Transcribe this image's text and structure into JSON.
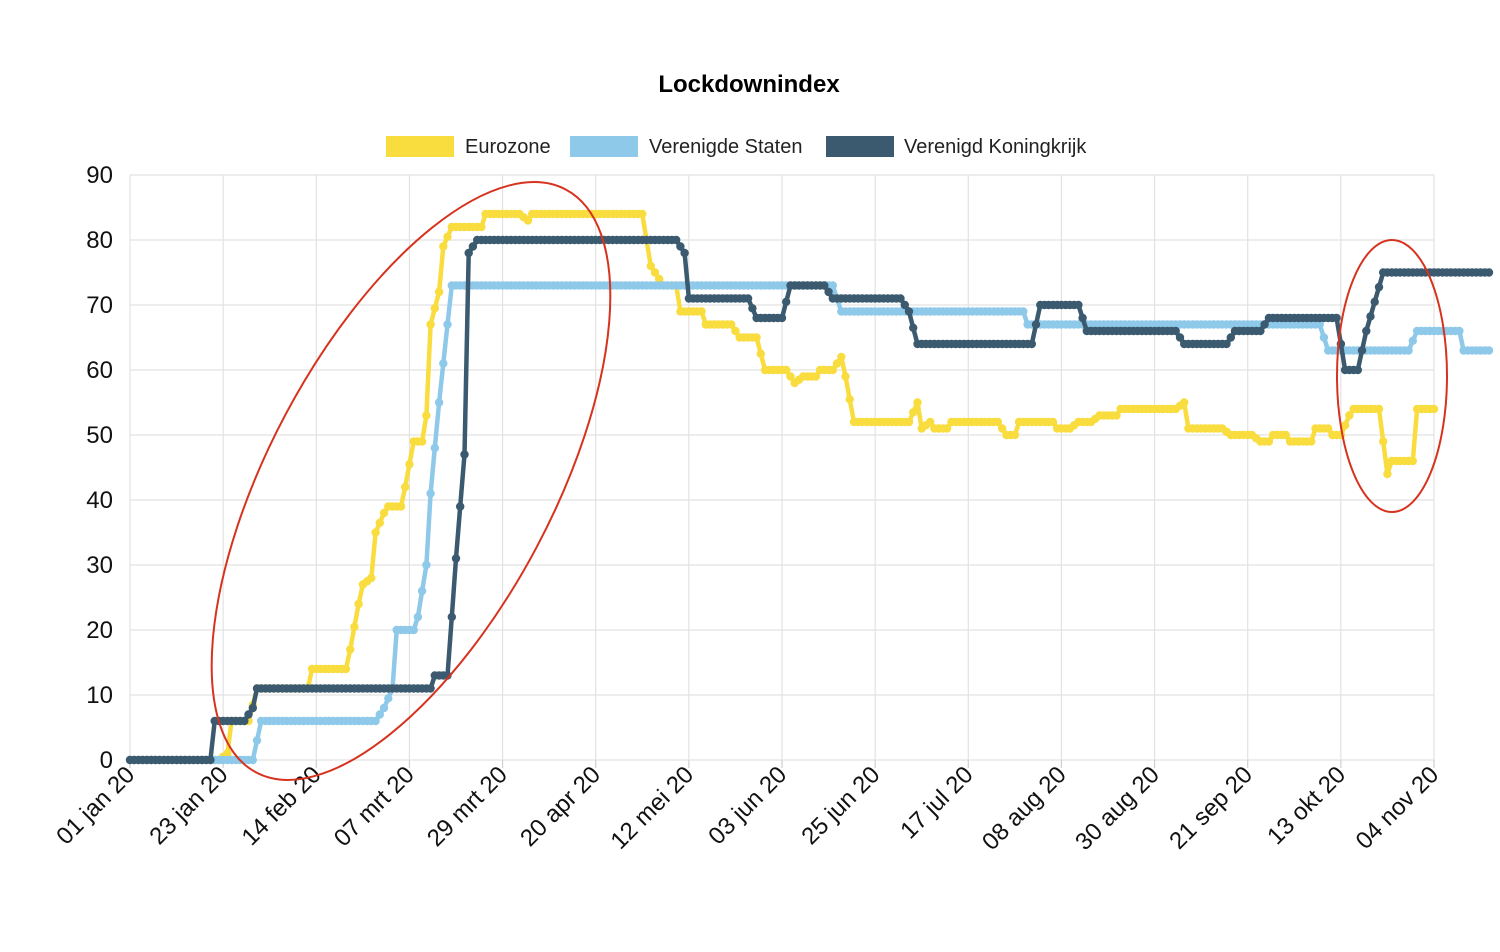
{
  "chart_data": {
    "type": "line",
    "title": "Lockdownindex",
    "xlabel": "",
    "ylabel": "",
    "ylim": [
      0,
      90
    ],
    "yticks": [
      0,
      10,
      20,
      30,
      40,
      50,
      60,
      70,
      80,
      90
    ],
    "xlim": [
      "2020-01-01",
      "2020-11-04"
    ],
    "x_tick_labels": [
      "01 jan 20",
      "23 jan 20",
      "14 feb 20",
      "07 mrt 20",
      "29 mrt 20",
      "20 apr 20",
      "12 mei 20",
      "03 jun 20",
      "25 jun 20",
      "17 jul 20",
      "08 aug 20",
      "30 aug 20",
      "21 sep 20",
      "13 okt 20",
      "04 nov 20"
    ],
    "x_tick_dates": [
      "2020-01-01",
      "2020-01-23",
      "2020-02-14",
      "2020-03-07",
      "2020-03-29",
      "2020-04-20",
      "2020-05-12",
      "2020-06-03",
      "2020-06-25",
      "2020-07-17",
      "2020-08-08",
      "2020-08-30",
      "2020-09-21",
      "2020-10-13",
      "2020-11-04"
    ],
    "grid": true,
    "legend_position": "top-center",
    "annotations": [
      "red ellipse around the rise in February–March",
      "red ellipse around the last weeks of October–November"
    ],
    "series": [
      {
        "name": "Eurozone",
        "color": "#f9dc3e",
        "points": [
          [
            "2020-01-01",
            0
          ],
          [
            "2020-01-22",
            0
          ],
          [
            "2020-01-24",
            1
          ],
          [
            "2020-01-25",
            6
          ],
          [
            "2020-01-29",
            6
          ],
          [
            "2020-01-31",
            11
          ],
          [
            "2020-02-12",
            11
          ],
          [
            "2020-02-13",
            14
          ],
          [
            "2020-02-21",
            14
          ],
          [
            "2020-02-22",
            17
          ],
          [
            "2020-02-24",
            24
          ],
          [
            "2020-02-25",
            27
          ],
          [
            "2020-02-27",
            28
          ],
          [
            "2020-02-28",
            35
          ],
          [
            "2020-03-01",
            38
          ],
          [
            "2020-03-02",
            39
          ],
          [
            "2020-03-05",
            39
          ],
          [
            "2020-03-06",
            42
          ],
          [
            "2020-03-08",
            49
          ],
          [
            "2020-03-10",
            49
          ],
          [
            "2020-03-11",
            53
          ],
          [
            "2020-03-12",
            67
          ],
          [
            "2020-03-14",
            72
          ],
          [
            "2020-03-15",
            79
          ],
          [
            "2020-03-17",
            82
          ],
          [
            "2020-03-24",
            82
          ],
          [
            "2020-03-25",
            84
          ],
          [
            "2020-04-02",
            84
          ],
          [
            "2020-04-04",
            83
          ],
          [
            "2020-04-05",
            84
          ],
          [
            "2020-05-01",
            84
          ],
          [
            "2020-05-03",
            76
          ],
          [
            "2020-05-05",
            74
          ],
          [
            "2020-05-06",
            73
          ],
          [
            "2020-05-09",
            73
          ],
          [
            "2020-05-10",
            69
          ],
          [
            "2020-05-15",
            69
          ],
          [
            "2020-05-16",
            67
          ],
          [
            "2020-05-22",
            67
          ],
          [
            "2020-05-23",
            66
          ],
          [
            "2020-05-24",
            65
          ],
          [
            "2020-05-28",
            65
          ],
          [
            "2020-05-30",
            60
          ],
          [
            "2020-06-04",
            60
          ],
          [
            "2020-06-06",
            58
          ],
          [
            "2020-06-08",
            59
          ],
          [
            "2020-06-11",
            59
          ],
          [
            "2020-06-12",
            60
          ],
          [
            "2020-06-15",
            60
          ],
          [
            "2020-06-17",
            62
          ],
          [
            "2020-06-18",
            59
          ],
          [
            "2020-06-20",
            52
          ],
          [
            "2020-07-03",
            52
          ],
          [
            "2020-07-05",
            55
          ],
          [
            "2020-07-06",
            51
          ],
          [
            "2020-07-08",
            52
          ],
          [
            "2020-07-09",
            51
          ],
          [
            "2020-07-12",
            51
          ],
          [
            "2020-07-13",
            52
          ],
          [
            "2020-07-24",
            52
          ],
          [
            "2020-07-26",
            50
          ],
          [
            "2020-07-28",
            50
          ],
          [
            "2020-07-29",
            52
          ],
          [
            "2020-08-06",
            52
          ],
          [
            "2020-08-07",
            51
          ],
          [
            "2020-08-10",
            51
          ],
          [
            "2020-08-12",
            52
          ],
          [
            "2020-08-15",
            52
          ],
          [
            "2020-08-17",
            53
          ],
          [
            "2020-08-21",
            53
          ],
          [
            "2020-08-22",
            54
          ],
          [
            "2020-09-04",
            54
          ],
          [
            "2020-09-06",
            55
          ],
          [
            "2020-09-07",
            51
          ],
          [
            "2020-09-15",
            51
          ],
          [
            "2020-09-17",
            50
          ],
          [
            "2020-09-22",
            50
          ],
          [
            "2020-09-24",
            49
          ],
          [
            "2020-09-26",
            49
          ],
          [
            "2020-09-27",
            50
          ],
          [
            "2020-09-30",
            50
          ],
          [
            "2020-10-01",
            49
          ],
          [
            "2020-10-06",
            49
          ],
          [
            "2020-10-07",
            51
          ],
          [
            "2020-10-10",
            51
          ],
          [
            "2020-10-11",
            50
          ],
          [
            "2020-10-13",
            50
          ],
          [
            "2020-10-15",
            53
          ],
          [
            "2020-10-16",
            54
          ],
          [
            "2020-10-22",
            54
          ],
          [
            "2020-10-24",
            44
          ],
          [
            "2020-10-25",
            46
          ],
          [
            "2020-10-30",
            46
          ],
          [
            "2020-10-31",
            54
          ],
          [
            "2020-11-04",
            54
          ]
        ]
      },
      {
        "name": "Verenigde Staten",
        "color": "#8ec9ea",
        "points": [
          [
            "2020-01-01",
            0
          ],
          [
            "2020-01-30",
            0
          ],
          [
            "2020-02-01",
            6
          ],
          [
            "2020-02-28",
            6
          ],
          [
            "2020-03-01",
            8
          ],
          [
            "2020-03-03",
            11
          ],
          [
            "2020-03-04",
            20
          ],
          [
            "2020-03-08",
            20
          ],
          [
            "2020-03-09",
            22
          ],
          [
            "2020-03-11",
            30
          ],
          [
            "2020-03-12",
            41
          ],
          [
            "2020-03-14",
            55
          ],
          [
            "2020-03-16",
            67
          ],
          [
            "2020-03-17",
            73
          ],
          [
            "2020-06-15",
            73
          ],
          [
            "2020-06-17",
            69
          ],
          [
            "2020-07-30",
            69
          ],
          [
            "2020-07-31",
            67
          ],
          [
            "2020-10-08",
            67
          ],
          [
            "2020-10-10",
            63
          ],
          [
            "2020-10-29",
            63
          ],
          [
            "2020-10-31",
            66
          ],
          [
            "2020-11-10",
            66
          ],
          [
            "2020-11-11",
            63
          ],
          [
            "2020-11-17",
            63
          ]
        ]
      },
      {
        "name": "Verenigd Koningkrijk",
        "color": "#3b5a6f",
        "points": [
          [
            "2020-01-01",
            0
          ],
          [
            "2020-01-20",
            0
          ],
          [
            "2020-01-21",
            6
          ],
          [
            "2020-01-28",
            6
          ],
          [
            "2020-01-30",
            8
          ],
          [
            "2020-01-31",
            11
          ],
          [
            "2020-03-12",
            11
          ],
          [
            "2020-03-13",
            13
          ],
          [
            "2020-03-16",
            13
          ],
          [
            "2020-03-17",
            22
          ],
          [
            "2020-03-18",
            31
          ],
          [
            "2020-03-20",
            47
          ],
          [
            "2020-03-21",
            78
          ],
          [
            "2020-03-23",
            80
          ],
          [
            "2020-05-09",
            80
          ],
          [
            "2020-05-11",
            78
          ],
          [
            "2020-05-12",
            71
          ],
          [
            "2020-05-26",
            71
          ],
          [
            "2020-05-28",
            68
          ],
          [
            "2020-06-03",
            68
          ],
          [
            "2020-06-05",
            73
          ],
          [
            "2020-06-13",
            73
          ],
          [
            "2020-06-15",
            71
          ],
          [
            "2020-07-01",
            71
          ],
          [
            "2020-07-03",
            69
          ],
          [
            "2020-07-05",
            64
          ],
          [
            "2020-08-01",
            64
          ],
          [
            "2020-08-03",
            70
          ],
          [
            "2020-08-12",
            70
          ],
          [
            "2020-08-14",
            66
          ],
          [
            "2020-09-04",
            66
          ],
          [
            "2020-09-06",
            64
          ],
          [
            "2020-09-16",
            64
          ],
          [
            "2020-09-18",
            66
          ],
          [
            "2020-09-24",
            66
          ],
          [
            "2020-09-26",
            68
          ],
          [
            "2020-10-12",
            68
          ],
          [
            "2020-10-14",
            60
          ],
          [
            "2020-10-17",
            60
          ],
          [
            "2020-10-19",
            66
          ],
          [
            "2020-10-23",
            75
          ],
          [
            "2020-11-17",
            75
          ]
        ]
      }
    ]
  }
}
